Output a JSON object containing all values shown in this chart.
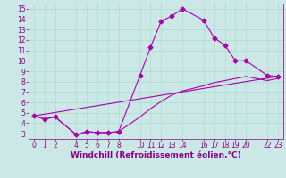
{
  "xlabel": "Windchill (Refroidissement éolien,°C)",
  "background_color": "#cce8e6",
  "line_color": "#aa00aa",
  "grid_color": "#aaddcc",
  "xlim": [
    -0.5,
    23.5
  ],
  "ylim": [
    2.5,
    15.5
  ],
  "yticks": [
    3,
    4,
    5,
    6,
    7,
    8,
    9,
    10,
    11,
    12,
    13,
    14,
    15
  ],
  "xticks": [
    0,
    1,
    2,
    4,
    5,
    6,
    7,
    8,
    10,
    11,
    12,
    13,
    14,
    16,
    17,
    18,
    19,
    20,
    22,
    23
  ],
  "line1_x": [
    0,
    1,
    2,
    4,
    5,
    6,
    7,
    8,
    10,
    11,
    12,
    13,
    14,
    16,
    17,
    18,
    19,
    20,
    22,
    23
  ],
  "line1_y": [
    4.7,
    4.4,
    4.6,
    2.9,
    3.2,
    3.1,
    3.1,
    3.2,
    8.6,
    11.3,
    13.8,
    14.3,
    15.0,
    13.9,
    12.2,
    11.5,
    10.0,
    10.0,
    8.6,
    8.5
  ],
  "line2_x": [
    0,
    23
  ],
  "line2_y": [
    4.7,
    8.5
  ],
  "line3_x": [
    0,
    1,
    2,
    4,
    5,
    6,
    7,
    8,
    10,
    11,
    12,
    13,
    14,
    16,
    17,
    18,
    19,
    20,
    22,
    23
  ],
  "line3_y": [
    4.7,
    4.4,
    4.6,
    2.9,
    3.2,
    3.1,
    3.1,
    3.2,
    4.6,
    5.4,
    6.1,
    6.7,
    7.1,
    7.6,
    7.9,
    8.1,
    8.3,
    8.5,
    8.1,
    8.3
  ],
  "marker": "D",
  "markersize": 2.5,
  "linewidth": 0.8,
  "font_color": "#880088",
  "tick_font_size": 5.5,
  "xlabel_font_size": 6.5
}
